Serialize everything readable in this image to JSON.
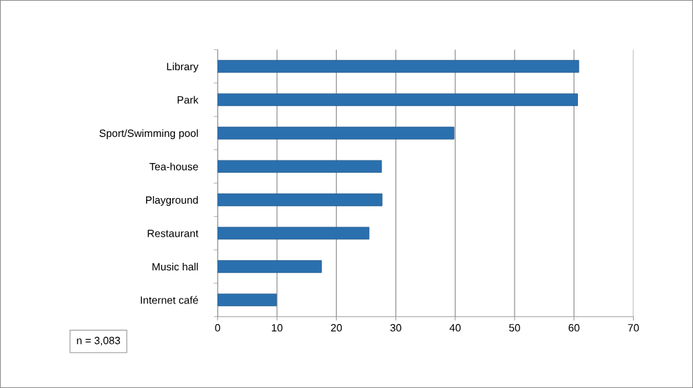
{
  "chart_data": {
    "type": "bar",
    "orientation": "horizontal",
    "categories": [
      "Library",
      "Park",
      "Sport/Swimming pool",
      "Tea-house",
      "Playground",
      "Restaurant",
      "Music hall",
      "Internet café"
    ],
    "values": [
      60.8,
      60.6,
      39.8,
      27.6,
      27.7,
      25.5,
      17.5,
      9.9
    ],
    "color": "#2b70ae",
    "xlim": [
      0,
      70
    ],
    "xticks": [
      0,
      10,
      20,
      30,
      40,
      50,
      60,
      70
    ],
    "grid": "x",
    "legend": false,
    "annotations": [
      "n = 3,083"
    ]
  }
}
